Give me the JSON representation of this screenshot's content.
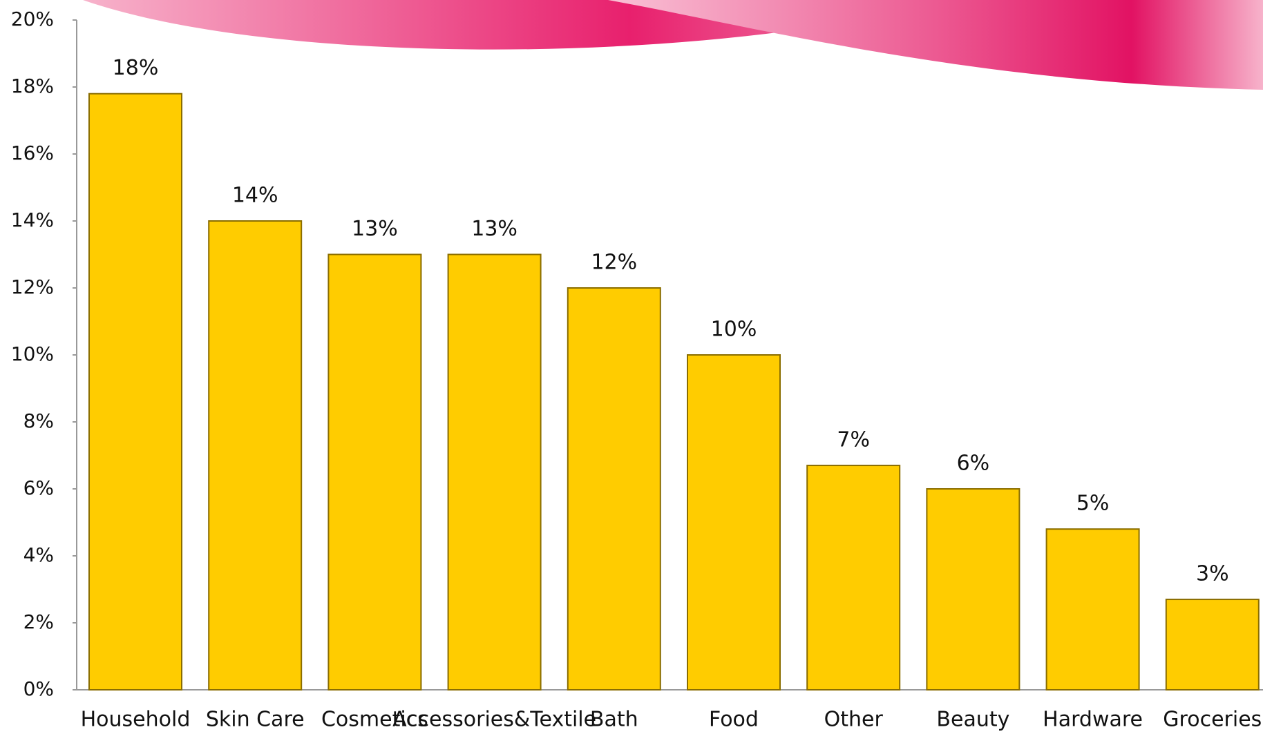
{
  "chart_data": {
    "type": "bar",
    "categories": [
      "Household",
      "Skin Care",
      "Cosmetics",
      "Accessories&Textile",
      "Bath",
      "Food",
      "Other",
      "Beauty",
      "Hardware",
      "Groceries"
    ],
    "values": [
      17.8,
      14.0,
      13.0,
      13.0,
      12.0,
      10.0,
      6.7,
      6.0,
      4.8,
      2.7
    ],
    "value_labels": [
      "18%",
      "14%",
      "13%",
      "13%",
      "12%",
      "10%",
      "7%",
      "6%",
      "5%",
      "3%"
    ],
    "color": "#ffcc00",
    "ylim": [
      0,
      20
    ],
    "yticks": [
      {
        "value": 0,
        "label": "0%"
      },
      {
        "value": 2,
        "label": "2%"
      },
      {
        "value": 4,
        "label": "4%"
      },
      {
        "value": 6,
        "label": "6%"
      },
      {
        "value": 8,
        "label": "8%"
      },
      {
        "value": 10,
        "label": "10%"
      },
      {
        "value": 12,
        "label": "12%"
      },
      {
        "value": 14,
        "label": "14%"
      },
      {
        "value": 16,
        "label": "16%"
      },
      {
        "value": 18,
        "label": "18%"
      },
      {
        "value": 20,
        "label": "20%"
      }
    ]
  }
}
